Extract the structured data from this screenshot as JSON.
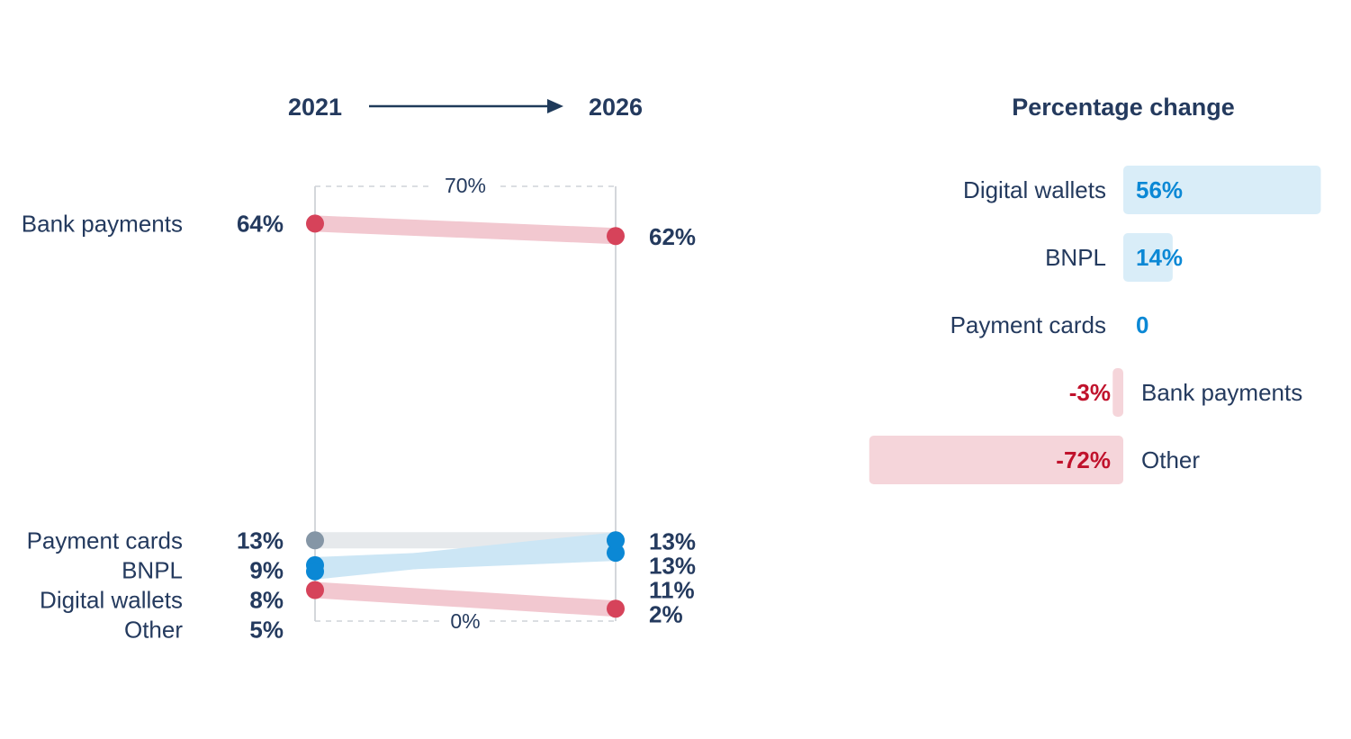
{
  "chart_data": [
    {
      "type": "slope",
      "start_label": "2021",
      "end_label": "2026",
      "axis_top_label": "70%",
      "axis_bottom_label": "0%",
      "ylim": [
        0,
        70
      ],
      "series": [
        {
          "name": "Bank payments",
          "label": "Bank payments",
          "start": 64,
          "end": 62,
          "start_text": "64%",
          "end_text": "62%",
          "color": "#d6435a",
          "band": "#f2c8d0"
        },
        {
          "name": "Payment cards",
          "label": "Payment cards",
          "start": 13,
          "end": 13,
          "start_text": "13%",
          "end_text": "13%",
          "color": "#8596a6",
          "band": "#e6e9ec"
        },
        {
          "name": "BNPL",
          "label": "BNPL",
          "start": 9,
          "end": 11,
          "start_text": "9%",
          "end_text": "11%",
          "color": "#0b88d5",
          "band": "#cce6f5"
        },
        {
          "name": "Digital wallets",
          "label": "Digital wallets",
          "start": 8,
          "end": 13,
          "start_text": "8%",
          "end_text": "13%",
          "color": "#0b88d5",
          "band": "#cce6f5"
        },
        {
          "name": "Other",
          "label": "Other",
          "start": 5,
          "end": 2,
          "start_text": "5%",
          "end_text": "2%",
          "color": "#d6435a",
          "band": "#f2c8d0"
        }
      ]
    },
    {
      "type": "bar",
      "title": "Percentage change",
      "categories": [
        "Digital wallets",
        "BNPL",
        "Payment cards",
        "Bank payments",
        "Other"
      ],
      "values": [
        56,
        14,
        0,
        -3,
        -72
      ],
      "value_labels": [
        "56%",
        "14%",
        "0",
        "-3%",
        "-72%"
      ],
      "positive_text_color": "#0b88d5",
      "negative_text_color": "#c0122c",
      "positive_bar_color": "#d9edf8",
      "negative_bar_color": "#f5d5da"
    }
  ],
  "colors": {
    "text": "#243a5e",
    "axis": "#d4d7db",
    "arrow": "#1f3a5a"
  }
}
